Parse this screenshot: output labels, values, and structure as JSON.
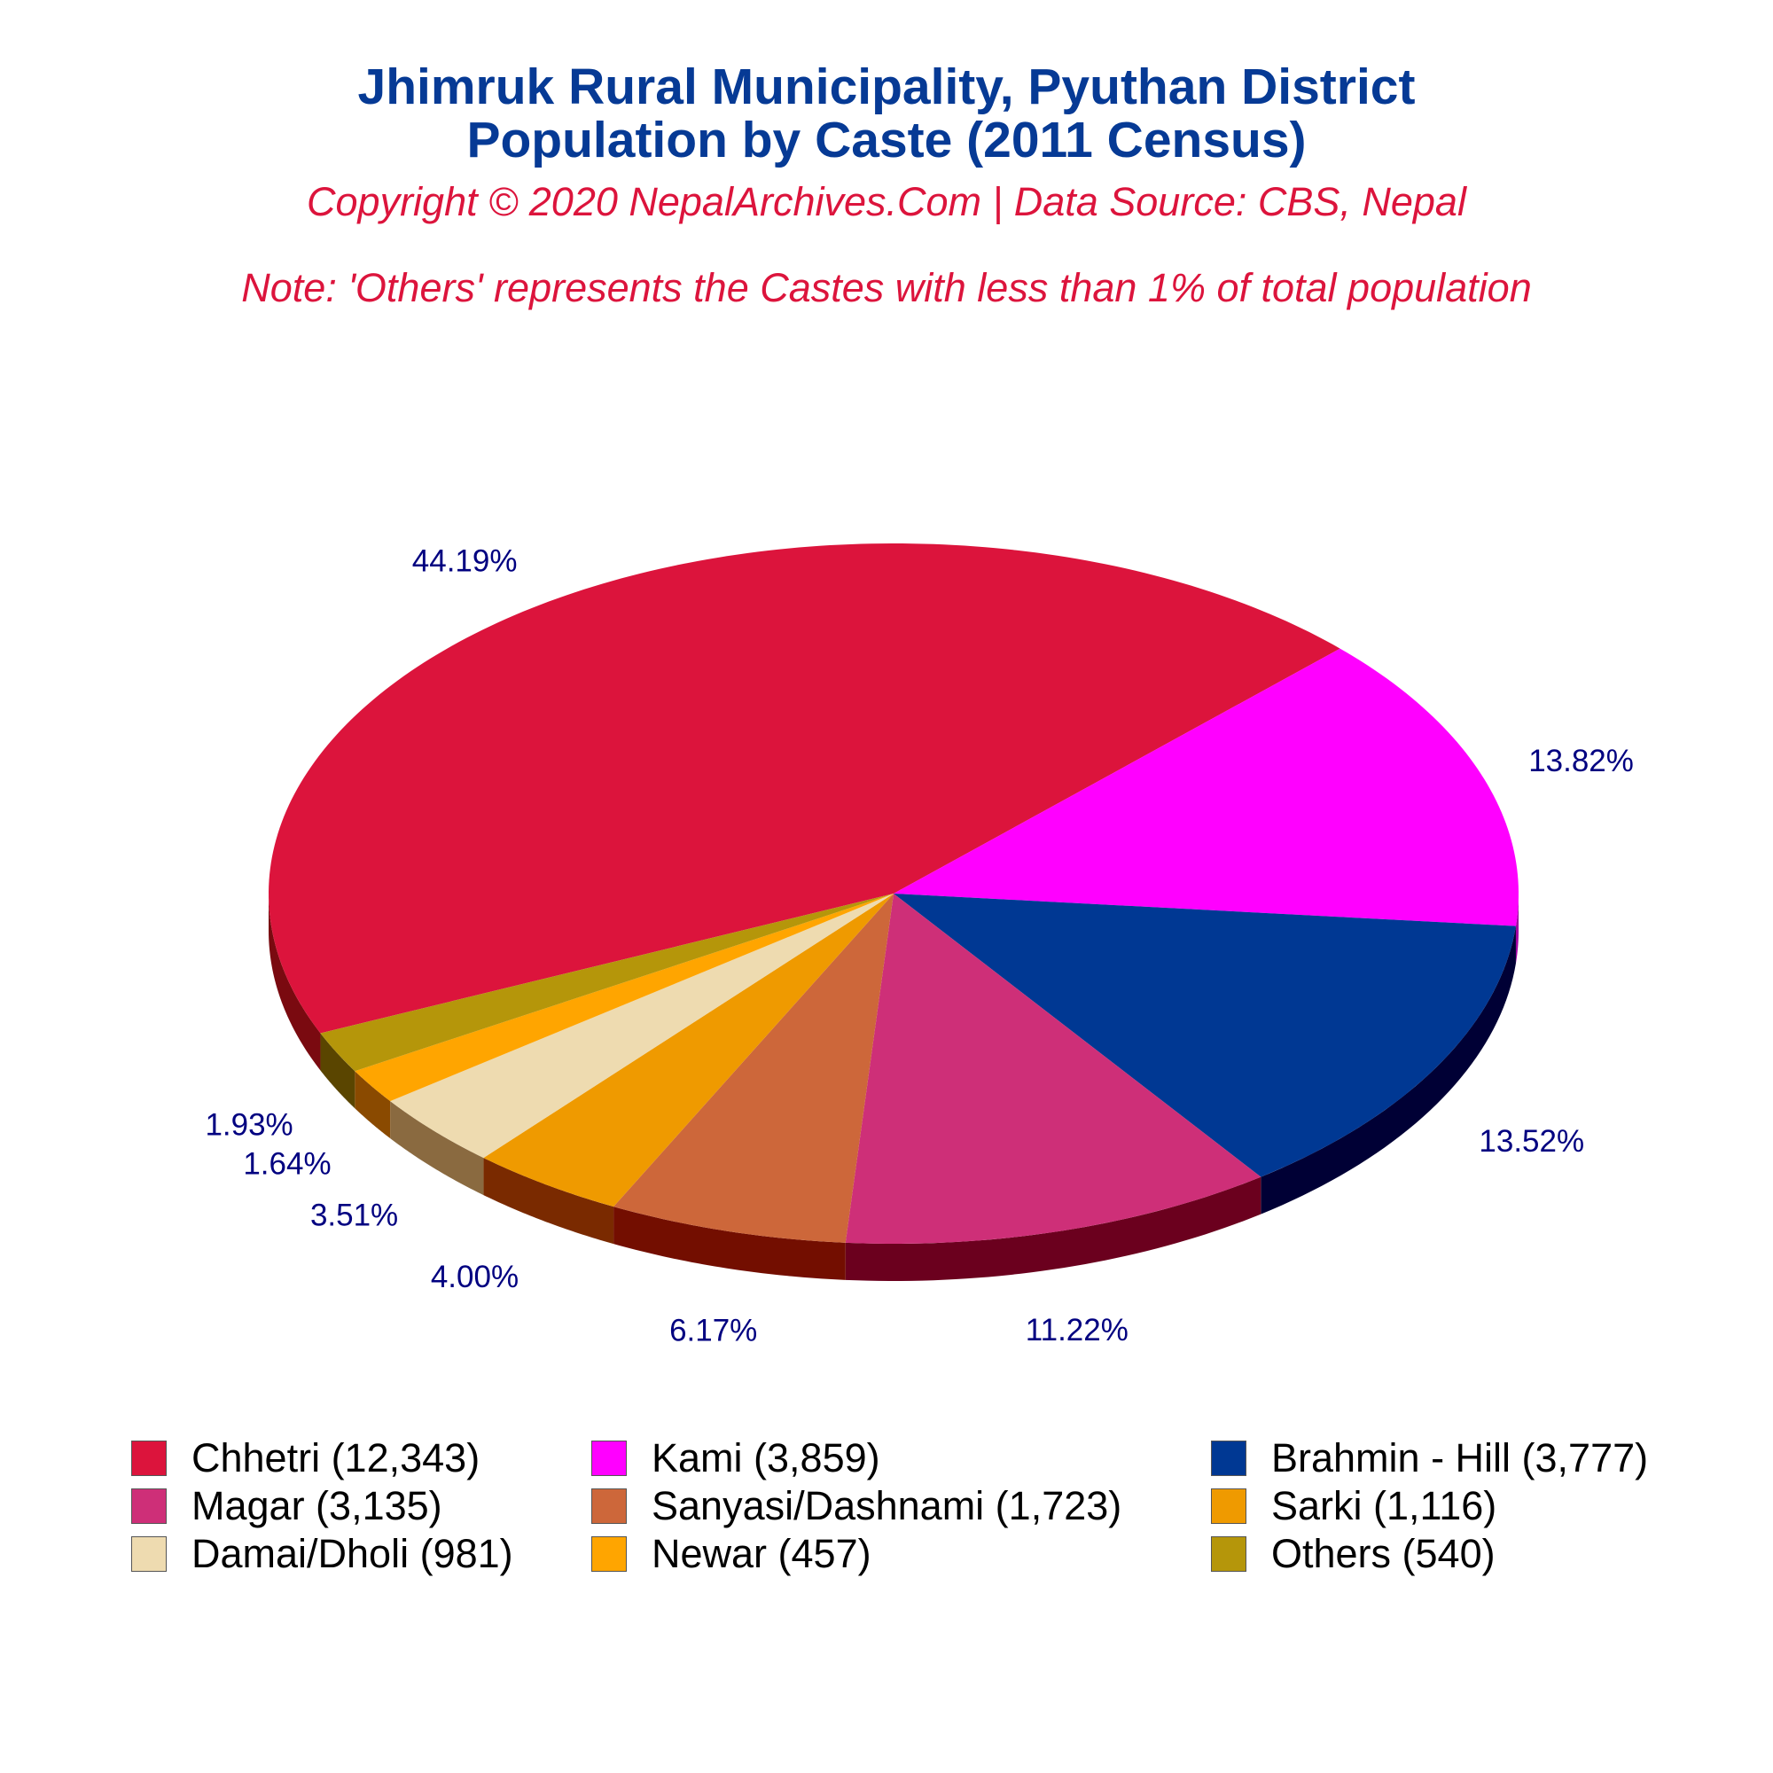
{
  "colors": {
    "title": "#063A95",
    "subtitle": "#DC143C",
    "label": "#000080"
  },
  "header": {
    "title_line_1": "Jhimruk Rural Municipality, Pyuthan District",
    "title_line_2": "Population by Caste (2011 Census)",
    "copyright": "Copyright © 2020 NepalArchives.Com | Data Source: CBS, Nepal",
    "note": "Note: 'Others' represents the Castes with less than 1% of total population"
  },
  "chart_data": {
    "type": "pie",
    "style": "3d-tilted",
    "slices": [
      {
        "name": "Chhetri",
        "value": 12343,
        "percent_label": "44.19%",
        "legend_label": "Chhetri (12,343)",
        "color": "#DC143C",
        "side_color": "#7A0A10"
      },
      {
        "name": "Kami",
        "value": 3859,
        "percent_label": "13.82%",
        "legend_label": "Kami (3,859)",
        "color": "#FF00FF",
        "side_color": "#A300A3"
      },
      {
        "name": "Brahmin - Hill",
        "value": 3777,
        "percent_label": "13.52%",
        "legend_label": "Brahmin - Hill (3,777)",
        "color": "#003893",
        "side_color": "#000035"
      },
      {
        "name": "Magar",
        "value": 3135,
        "percent_label": "11.22%",
        "legend_label": "Magar (3,135)",
        "color": "#CE2F78",
        "side_color": "#6B001E"
      },
      {
        "name": "Sanyasi/Dashnami",
        "value": 1723,
        "percent_label": "6.17%",
        "legend_label": "Sanyasi/Dashnami (1,723)",
        "color": "#CD673A",
        "side_color": "#730E00"
      },
      {
        "name": "Sarki",
        "value": 1116,
        "percent_label": "4.00%",
        "legend_label": "Sarki (1,116)",
        "color": "#EF9A00",
        "side_color": "#7A2A00"
      },
      {
        "name": "Damai/Dholi",
        "value": 981,
        "percent_label": "3.51%",
        "legend_label": "Damai/Dholi (981)",
        "color": "#EEDBB0",
        "side_color": "#8A6A40"
      },
      {
        "name": "Newar",
        "value": 457,
        "percent_label": "1.64%",
        "legend_label": "Newar (457)",
        "color": "#FFA500",
        "side_color": "#8A4A00"
      },
      {
        "name": "Others",
        "value": 540,
        "percent_label": "1.93%",
        "legend_label": "Others (540)",
        "color": "#B5960A",
        "side_color": "#5A4500"
      }
    ],
    "legend_placement": "bottom"
  }
}
